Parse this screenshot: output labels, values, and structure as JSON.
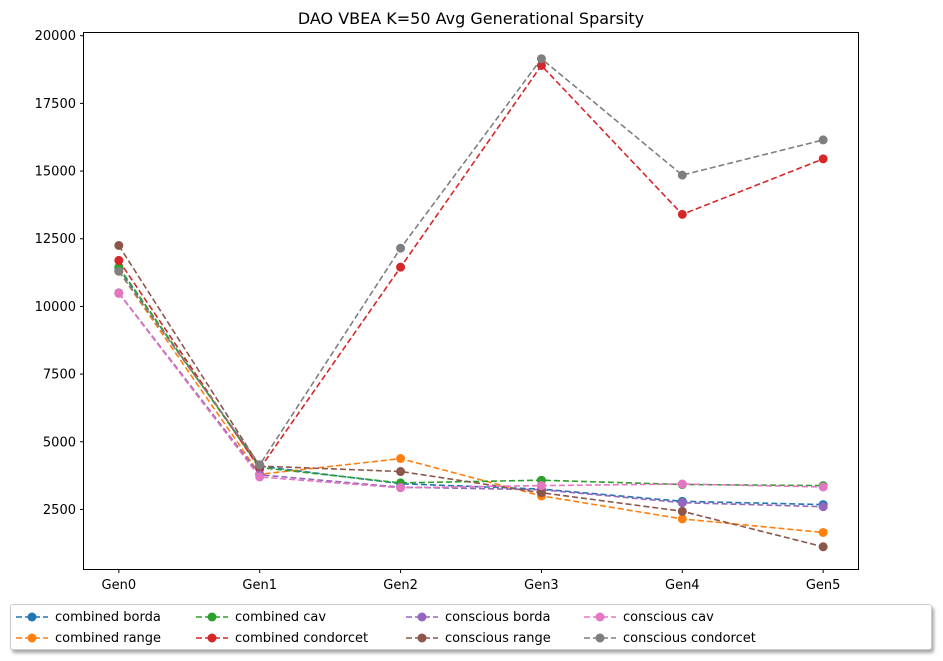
{
  "chart_data": {
    "type": "line",
    "title": "DAO VBEA K=50 Avg Generational Sparsity",
    "xlabel": "",
    "ylabel": "",
    "categories": [
      "Gen0",
      "Gen1",
      "Gen2",
      "Gen3",
      "Gen4",
      "Gen5"
    ],
    "ylim": [
      300,
      20100
    ],
    "yticks": [
      2500,
      5000,
      7500,
      10000,
      12500,
      15000,
      17500,
      20000
    ],
    "ytick_labels": [
      "2500",
      "5000",
      "7500",
      "10000",
      "12500",
      "15000",
      "17500",
      "20000"
    ],
    "line_style": "dashed",
    "marker": "circle",
    "grid": false,
    "legend_position": "bottom, below plot",
    "series": [
      {
        "name": "combined borda",
        "color": "#1f77b4",
        "values": [
          11400,
          4100,
          3450,
          3250,
          2800,
          2680
        ]
      },
      {
        "name": "combined range",
        "color": "#ff7f0e",
        "values": [
          11300,
          3800,
          4380,
          3000,
          2150,
          1650
        ]
      },
      {
        "name": "combined cav",
        "color": "#2ca02c",
        "values": [
          11450,
          4050,
          3480,
          3580,
          3420,
          3380
        ]
      },
      {
        "name": "combined condorcet",
        "color": "#d62728",
        "values": [
          11700,
          4000,
          11450,
          18900,
          13400,
          15450
        ]
      },
      {
        "name": "conscious borda",
        "color": "#9467bd",
        "values": [
          10500,
          3780,
          3320,
          3230,
          2750,
          2600
        ]
      },
      {
        "name": "conscious range",
        "color": "#8c564b",
        "values": [
          12250,
          4100,
          3900,
          3120,
          2430,
          1120
        ]
      },
      {
        "name": "conscious cav",
        "color": "#e377c2",
        "values": [
          10480,
          3700,
          3300,
          3380,
          3440,
          3330
        ]
      },
      {
        "name": "conscious condorcet",
        "color": "#7f7f7f",
        "values": [
          11300,
          4150,
          12150,
          19150,
          14850,
          16150
        ]
      }
    ]
  }
}
